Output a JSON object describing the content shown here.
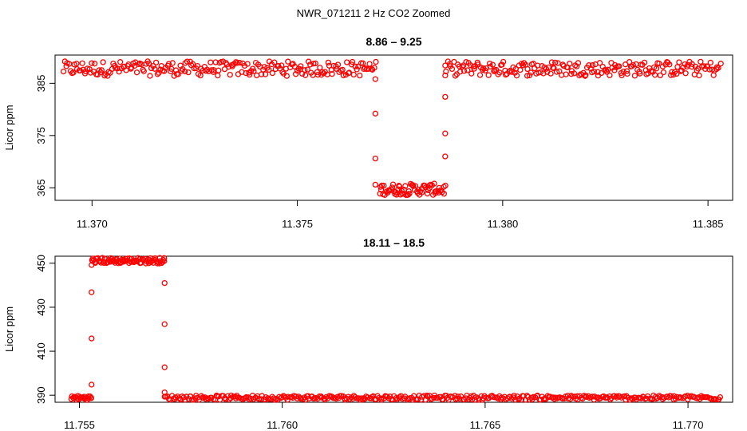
{
  "figure": {
    "suptitle": "NWR_071211  2 Hz CO2 Zoomed"
  },
  "chart_data": [
    {
      "type": "scatter",
      "title": "8.86 – 9.25",
      "xlabel": "",
      "ylabel": "Licor ppm",
      "xlim": [
        11.3691,
        11.3856
      ],
      "ylim": [
        362.6,
        390.4
      ],
      "x_ticks": [
        "11.370",
        "11.375",
        "11.380",
        "11.385"
      ],
      "x_tick_values": [
        11.37,
        11.375,
        11.38,
        11.385
      ],
      "y_ticks": [
        "365",
        "375",
        "385"
      ],
      "y_tick_values": [
        365,
        375,
        385
      ],
      "grid": false,
      "marker": "open-circle",
      "series_color": "#ff0000",
      "segments": [
        {
          "x_start": 11.3693,
          "x_end": 11.3769,
          "y_level": 387.8,
          "y_spread": 1.4,
          "n": 220
        },
        {
          "x_start": 11.377,
          "x_end": 11.3786,
          "y_level": 364.7,
          "y_spread": 1.1,
          "n": 70
        },
        {
          "x_start": 11.3786,
          "x_end": 11.3853,
          "y_level": 387.8,
          "y_spread": 1.4,
          "n": 200
        }
      ],
      "transition_points": [
        {
          "x": 11.3769,
          "y": 385.8
        },
        {
          "x": 11.3769,
          "y": 379.2
        },
        {
          "x": 11.3769,
          "y": 370.6
        },
        {
          "x": 11.3769,
          "y": 365.6
        },
        {
          "x": 11.3786,
          "y": 371.0
        },
        {
          "x": 11.3786,
          "y": 375.4
        },
        {
          "x": 11.3786,
          "y": 382.4
        },
        {
          "x": 11.3786,
          "y": 386.5
        }
      ]
    },
    {
      "type": "scatter",
      "title": "18.11 – 18.5",
      "xlabel": "",
      "ylabel": "Licor ppm",
      "xlim": [
        11.7544,
        11.7711
      ],
      "ylim": [
        386.8,
        453.2
      ],
      "x_ticks": [
        "11.755",
        "11.760",
        "11.765",
        "11.770"
      ],
      "x_tick_values": [
        11.755,
        11.76,
        11.765,
        11.77
      ],
      "y_ticks": [
        "390",
        "410",
        "430",
        "450"
      ],
      "y_tick_values": [
        390,
        410,
        430,
        450
      ],
      "grid": false,
      "marker": "open-circle",
      "series_color": "#ff0000",
      "segments": [
        {
          "x_start": 11.7548,
          "x_end": 11.7553,
          "y_level": 388.8,
          "y_spread": 1.0,
          "n": 25
        },
        {
          "x_start": 11.7553,
          "x_end": 11.7571,
          "y_level": 451.2,
          "y_spread": 1.3,
          "n": 90
        },
        {
          "x_start": 11.7571,
          "x_end": 11.7708,
          "y_level": 388.9,
          "y_spread": 1.0,
          "n": 400
        }
      ],
      "transition_points": [
        {
          "x": 11.7553,
          "y": 394.8
        },
        {
          "x": 11.7553,
          "y": 415.8
        },
        {
          "x": 11.7553,
          "y": 436.8
        },
        {
          "x": 11.7553,
          "y": 449.2
        },
        {
          "x": 11.7571,
          "y": 441.0
        },
        {
          "x": 11.7571,
          "y": 422.3
        },
        {
          "x": 11.7571,
          "y": 402.7
        },
        {
          "x": 11.7571,
          "y": 391.3
        }
      ]
    }
  ]
}
